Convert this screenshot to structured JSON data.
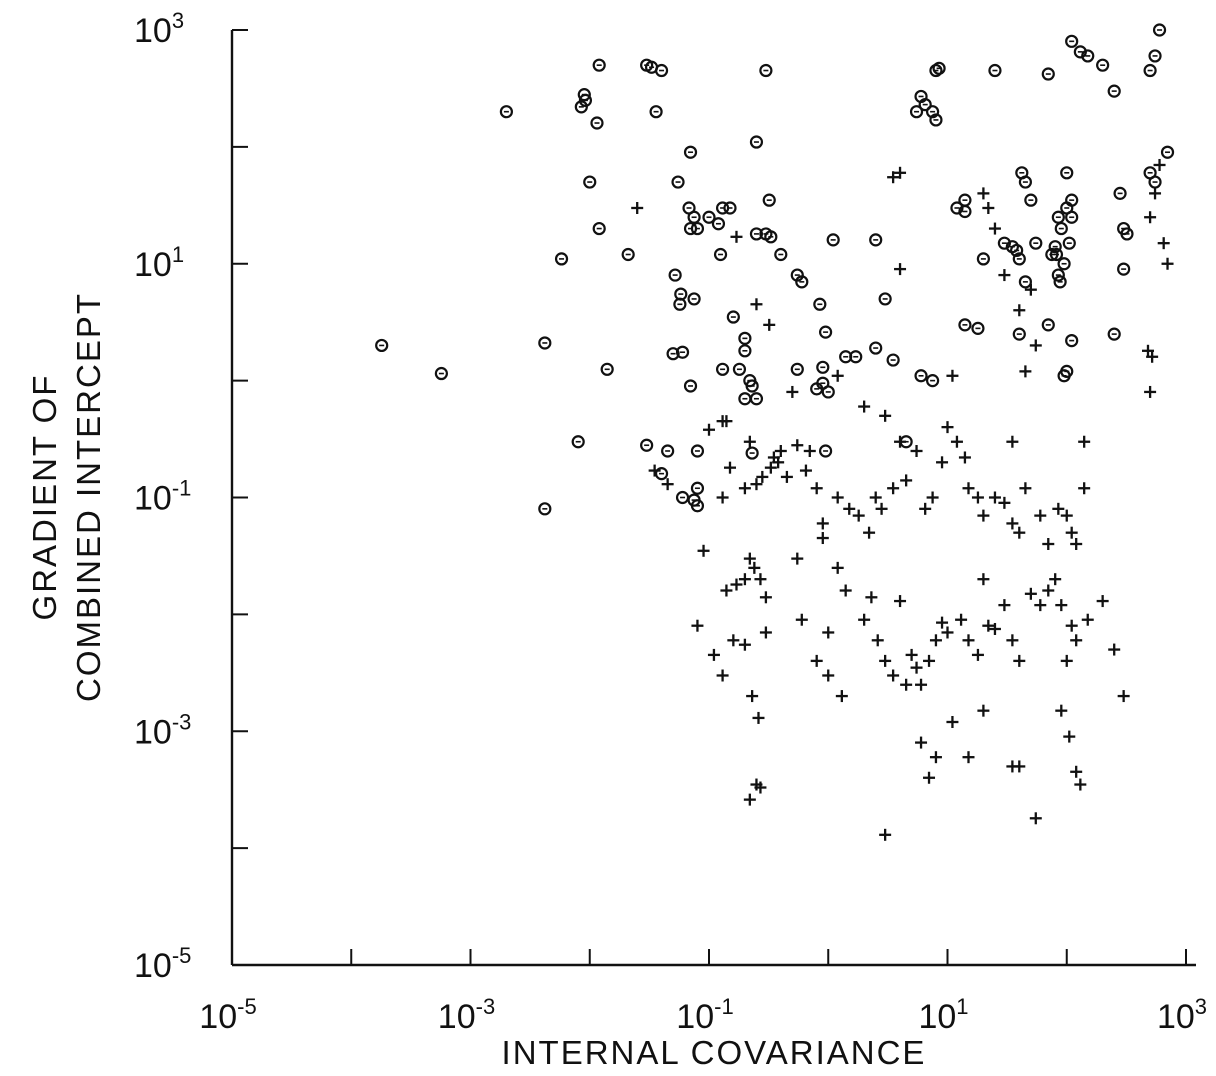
{
  "chart_data": {
    "type": "scatter",
    "title": "",
    "xlabel": "INTERNAL COVARIANCE",
    "ylabel_lines": [
      "GRADIENT OF",
      "COMBINED INTERCEPT"
    ],
    "x_scale": "log",
    "y_scale": "log",
    "xlim": [
      1e-05,
      1000
    ],
    "ylim": [
      1e-05,
      1000
    ],
    "grid": false,
    "x_tick_labels": [
      {
        "value": 1e-05,
        "base": "10",
        "exp": "-5"
      },
      {
        "value": 0.001,
        "base": "10",
        "exp": "-3"
      },
      {
        "value": 0.1,
        "base": "10",
        "exp": "-1"
      },
      {
        "value": 10,
        "base": "10",
        "exp": "1"
      },
      {
        "value": 1000,
        "base": "10",
        "exp": "3"
      }
    ],
    "y_tick_labels": [
      {
        "value": 1e-05,
        "base": "10",
        "exp": "-5"
      },
      {
        "value": 0.001,
        "base": "10",
        "exp": "-3"
      },
      {
        "value": 0.1,
        "base": "10",
        "exp": "-1"
      },
      {
        "value": 10,
        "base": "10",
        "exp": "1"
      },
      {
        "value": 1000,
        "base": "10",
        "exp": "3"
      }
    ],
    "series": [
      {
        "marker": "circle",
        "points": [
          [
            0.002,
            200
          ],
          [
            0.012,
            500
          ],
          [
            0.009,
            280
          ],
          [
            0.0085,
            220
          ],
          [
            0.0092,
            250
          ],
          [
            0.0115,
            160
          ],
          [
            0.03,
            500
          ],
          [
            0.033,
            480
          ],
          [
            0.04,
            450
          ],
          [
            0.036,
            200
          ],
          [
            0.012,
            20
          ],
          [
            0.01,
            50
          ],
          [
            0.021,
            12
          ],
          [
            0.0058,
            11
          ],
          [
            0.0042,
            2.1
          ],
          [
            0.014,
            1.25
          ],
          [
            0.008,
            0.3
          ],
          [
            0.0042,
            0.08
          ],
          [
            0.00018,
            2.0
          ],
          [
            0.00057,
            1.15
          ],
          [
            0.07,
            90
          ],
          [
            0.055,
            50
          ],
          [
            0.068,
            30
          ],
          [
            0.07,
            20
          ],
          [
            0.075,
            25
          ],
          [
            0.052,
            8
          ],
          [
            0.058,
            5.5
          ],
          [
            0.057,
            4.5
          ],
          [
            0.075,
            5
          ],
          [
            0.08,
            20
          ],
          [
            0.1,
            25
          ],
          [
            0.12,
            22
          ],
          [
            0.13,
            30
          ],
          [
            0.15,
            30
          ],
          [
            0.125,
            12
          ],
          [
            0.16,
            3.5
          ],
          [
            0.2,
            2.3
          ],
          [
            0.2,
            1.8
          ],
          [
            0.13,
            1.25
          ],
          [
            0.18,
            1.25
          ],
          [
            0.23,
            0.9
          ],
          [
            0.2,
            0.7
          ],
          [
            0.25,
            0.7
          ],
          [
            0.05,
            1.7
          ],
          [
            0.06,
            1.75
          ],
          [
            0.07,
            0.9
          ],
          [
            0.08,
            0.25
          ],
          [
            0.045,
            0.25
          ],
          [
            0.03,
            0.28
          ],
          [
            0.04,
            0.16
          ],
          [
            0.06,
            0.1
          ],
          [
            0.075,
            0.095
          ],
          [
            0.08,
            0.12
          ],
          [
            0.08,
            0.085
          ],
          [
            0.23,
            0.24
          ],
          [
            0.22,
            1.0
          ],
          [
            0.25,
            18
          ],
          [
            0.33,
            17
          ],
          [
            0.3,
            18
          ],
          [
            0.32,
            35
          ],
          [
            0.4,
            12
          ],
          [
            0.25,
            110
          ],
          [
            0.3,
            450
          ],
          [
            0.55,
            8
          ],
          [
            0.6,
            7
          ],
          [
            0.85,
            4.5
          ],
          [
            0.95,
            2.6
          ],
          [
            1.0,
            0.8
          ],
          [
            0.9,
            0.95
          ],
          [
            0.8,
            0.85
          ],
          [
            0.95,
            0.25
          ],
          [
            0.55,
            1.25
          ],
          [
            0.9,
            1.3
          ],
          [
            1.1,
            16
          ],
          [
            1.4,
            1.6
          ],
          [
            1.7,
            1.6
          ],
          [
            2.5,
            1.9
          ],
          [
            2.5,
            16
          ],
          [
            3.0,
            5
          ],
          [
            3.5,
            1.5
          ],
          [
            4.5,
            0.3
          ],
          [
            6.0,
            1.1
          ],
          [
            7.5,
            1.0
          ],
          [
            8.0,
            450
          ],
          [
            8.5,
            470
          ],
          [
            6.0,
            270
          ],
          [
            5.5,
            200
          ],
          [
            6.5,
            230
          ],
          [
            7.5,
            200
          ],
          [
            8.0,
            170
          ],
          [
            12,
            30
          ],
          [
            14,
            35
          ],
          [
            14,
            3.0
          ],
          [
            18,
            2.8
          ],
          [
            14,
            28
          ],
          [
            20,
            11
          ],
          [
            25,
            450
          ],
          [
            30,
            15
          ],
          [
            35,
            14
          ],
          [
            38,
            13
          ],
          [
            40,
            11
          ],
          [
            42,
            60
          ],
          [
            45,
            50
          ],
          [
            50,
            35
          ],
          [
            45,
            7
          ],
          [
            40,
            2.5
          ],
          [
            55,
            15
          ],
          [
            70,
            3.0
          ],
          [
            75,
            12
          ],
          [
            82,
            12
          ],
          [
            80,
            14
          ],
          [
            85,
            8
          ],
          [
            88,
            7
          ],
          [
            95,
            10
          ],
          [
            85,
            25
          ],
          [
            90,
            20
          ],
          [
            100,
            60
          ],
          [
            110,
            35
          ],
          [
            100,
            30
          ],
          [
            110,
            25
          ],
          [
            105,
            15
          ],
          [
            110,
            800
          ],
          [
            130,
            650
          ],
          [
            150,
            600
          ],
          [
            200,
            500
          ],
          [
            110,
            2.2
          ],
          [
            100,
            1.2
          ],
          [
            95,
            1.1
          ],
          [
            70,
            420
          ],
          [
            250,
            300
          ],
          [
            280,
            40
          ],
          [
            300,
            20
          ],
          [
            320,
            18
          ],
          [
            300,
            9
          ],
          [
            250,
            2.5
          ],
          [
            500,
            450
          ],
          [
            550,
            600
          ],
          [
            600,
            1000
          ],
          [
            550,
            50
          ],
          [
            500,
            60
          ],
          [
            700,
            90
          ]
        ]
      },
      {
        "marker": "plus",
        "points": [
          [
            0.025,
            30
          ],
          [
            0.13,
            0.45
          ],
          [
            0.035,
            0.17
          ],
          [
            0.045,
            0.13
          ],
          [
            0.1,
            0.38
          ],
          [
            0.14,
            0.45
          ],
          [
            0.25,
            4.5
          ],
          [
            0.32,
            3.0
          ],
          [
            0.17,
            17
          ],
          [
            0.22,
            0.3
          ],
          [
            0.13,
            0.1
          ],
          [
            0.15,
            0.18
          ],
          [
            0.2,
            0.12
          ],
          [
            0.25,
            0.13
          ],
          [
            0.28,
            0.15
          ],
          [
            0.33,
            0.18
          ],
          [
            0.35,
            0.22
          ],
          [
            0.4,
            0.25
          ],
          [
            0.45,
            0.15
          ],
          [
            0.55,
            0.28
          ],
          [
            0.65,
            0.17
          ],
          [
            0.8,
            0.12
          ],
          [
            0.9,
            0.06
          ],
          [
            1.2,
            0.1
          ],
          [
            1.5,
            0.08
          ],
          [
            1.8,
            0.07
          ],
          [
            2.2,
            0.05
          ],
          [
            2.8,
            0.08
          ],
          [
            3.5,
            0.12
          ],
          [
            4.5,
            0.14
          ],
          [
            5.5,
            0.25
          ],
          [
            6.5,
            0.08
          ],
          [
            7.5,
            0.1
          ],
          [
            9.0,
            0.2
          ],
          [
            10,
            0.4
          ],
          [
            12,
            0.3
          ],
          [
            14,
            0.22
          ],
          [
            15,
            0.12
          ],
          [
            18,
            0.1
          ],
          [
            20,
            0.07
          ],
          [
            25,
            0.1
          ],
          [
            30,
            0.09
          ],
          [
            35,
            0.06
          ],
          [
            40,
            0.05
          ],
          [
            45,
            0.12
          ],
          [
            60,
            0.07
          ],
          [
            70,
            0.04
          ],
          [
            85,
            0.08
          ],
          [
            100,
            0.07
          ],
          [
            110,
            0.05
          ],
          [
            120,
            0.04
          ],
          [
            140,
            0.12
          ],
          [
            0.09,
            0.035
          ],
          [
            0.14,
            0.016
          ],
          [
            0.17,
            0.018
          ],
          [
            0.2,
            0.02
          ],
          [
            0.22,
            0.03
          ],
          [
            0.24,
            0.025
          ],
          [
            0.27,
            0.02
          ],
          [
            0.3,
            0.014
          ],
          [
            0.08,
            0.008
          ],
          [
            0.11,
            0.0045
          ],
          [
            0.13,
            0.003
          ],
          [
            0.16,
            0.006
          ],
          [
            0.2,
            0.0055
          ],
          [
            0.23,
            0.002
          ],
          [
            0.26,
            0.0013
          ],
          [
            0.3,
            0.007
          ],
          [
            0.55,
            0.03
          ],
          [
            0.8,
            0.004
          ],
          [
            1.0,
            0.003
          ],
          [
            1.3,
            0.002
          ],
          [
            1.4,
            0.016
          ],
          [
            2.0,
            0.009
          ],
          [
            2.3,
            0.014
          ],
          [
            2.6,
            0.006
          ],
          [
            3.0,
            0.004
          ],
          [
            3.5,
            0.003
          ],
          [
            4.0,
            0.013
          ],
          [
            4.5,
            0.0025
          ],
          [
            5.0,
            0.0045
          ],
          [
            5.5,
            0.0035
          ],
          [
            6.0,
            0.0025
          ],
          [
            7.0,
            0.004
          ],
          [
            8.0,
            0.006
          ],
          [
            9.0,
            0.0085
          ],
          [
            10,
            0.007
          ],
          [
            11,
            0.0012
          ],
          [
            13,
            0.009
          ],
          [
            15,
            0.006
          ],
          [
            18,
            0.0045
          ],
          [
            20,
            0.02
          ],
          [
            22,
            0.008
          ],
          [
            25,
            0.0075
          ],
          [
            30,
            0.012
          ],
          [
            35,
            0.006
          ],
          [
            40,
            0.004
          ],
          [
            50,
            0.015
          ],
          [
            60,
            0.012
          ],
          [
            70,
            0.016
          ],
          [
            80,
            0.02
          ],
          [
            90,
            0.012
          ],
          [
            100,
            0.004
          ],
          [
            110,
            0.008
          ],
          [
            120,
            0.006
          ],
          [
            150,
            0.009
          ],
          [
            200,
            0.013
          ],
          [
            250,
            0.005
          ],
          [
            300,
            0.002
          ],
          [
            8.0,
            0.0006
          ],
          [
            7.0,
            0.0004
          ],
          [
            6.0,
            0.0008
          ],
          [
            15,
            0.0006
          ],
          [
            20,
            0.0015
          ],
          [
            35,
            0.0005
          ],
          [
            40,
            0.0005
          ],
          [
            55,
            0.00018
          ],
          [
            90,
            0.0015
          ],
          [
            105,
            0.0009
          ],
          [
            120,
            0.00045
          ],
          [
            130,
            0.00035
          ],
          [
            0.25,
            0.00035
          ],
          [
            0.27,
            0.00033
          ],
          [
            0.22,
            0.00026
          ],
          [
            3.0,
            0.00013
          ],
          [
            0.6,
            0.009
          ],
          [
            1.0,
            0.007
          ],
          [
            1.2,
            0.025
          ],
          [
            0.9,
            0.045
          ],
          [
            3.0,
            0.5
          ],
          [
            4.0,
            0.3
          ],
          [
            2.5,
            0.1
          ],
          [
            1.2,
            1.1
          ],
          [
            0.5,
            0.8
          ],
          [
            0.38,
            0.2
          ],
          [
            2.0,
            0.6
          ],
          [
            0.7,
            0.25
          ],
          [
            40,
            4.0
          ],
          [
            30,
            8.0
          ],
          [
            20,
            40
          ],
          [
            50,
            6.0
          ],
          [
            55,
            2.0
          ],
          [
            35,
            0.3
          ],
          [
            45,
            1.2
          ],
          [
            140,
            0.3
          ],
          [
            500,
            25
          ],
          [
            550,
            40
          ],
          [
            600,
            70
          ],
          [
            650,
            15
          ],
          [
            700,
            10
          ],
          [
            480,
            1.8
          ],
          [
            520,
            1.6
          ],
          [
            500,
            0.8
          ],
          [
            4.0,
            60
          ],
          [
            3.5,
            55
          ],
          [
            4.0,
            9.0
          ],
          [
            11,
            1.1
          ],
          [
            25,
            20
          ],
          [
            22,
            30
          ]
        ]
      }
    ]
  }
}
